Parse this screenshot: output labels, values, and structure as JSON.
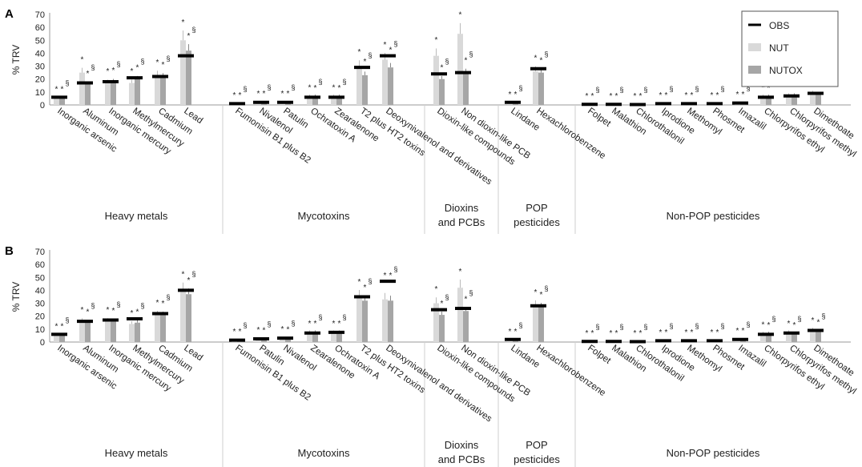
{
  "colors": {
    "obs": "#000000",
    "nut": "#d9d9d9",
    "nutox": "#a6a6a6",
    "axis": "#999999",
    "sep": "#cfcfcf",
    "text": "#222222"
  },
  "legend": {
    "items": [
      "OBS",
      "NUT",
      "NUTOX"
    ],
    "placement": "top-right"
  },
  "chart_data": [
    {
      "type": "bar",
      "panel_label": "A",
      "ylabel": "% TRV",
      "ylim": [
        0,
        70
      ],
      "yticks": [
        "0",
        "10",
        "20",
        "30",
        "40",
        "50",
        "60",
        "70"
      ],
      "categories": [
        "Inorganic arsenic",
        "Aluminum",
        "Inorganic mercury",
        "Methylmercury",
        "Cadmium",
        "Lead",
        "Fumonisin B1 plus B2",
        "Nivalenol",
        "Patulin",
        "Ochratoxin A",
        "Zearalenone",
        "T2 plus HT2 toxins",
        "Deoxynivalenol and derivatives",
        "Dioxin-like compounds",
        "Non dioxin-like PCB",
        "Lindane",
        "Hexachlorobenzene",
        "Folpet",
        "Malathion",
        "Chlorothalonil",
        "Iprodione",
        "Methomyl",
        "Phosmet",
        "Imazalil",
        "Chlorpyrifos ethyl",
        "Chlorpyrifos methyl",
        "Dimethoate"
      ],
      "groups": [
        {
          "label": "Heavy metals",
          "count": 6
        },
        {
          "label": "Mycotoxins",
          "count": 7
        },
        {
          "label": "Dioxins and PCBs",
          "count": 2
        },
        {
          "label": "POP pesticides",
          "count": 2
        },
        {
          "label": "Non-POP pesticides",
          "count": 10
        }
      ],
      "series": [
        {
          "name": "OBS",
          "values": [
            6,
            17,
            18,
            21,
            22,
            38,
            1,
            2,
            2,
            6,
            6,
            29,
            38,
            24,
            25,
            2,
            28,
            0.5,
            0.5,
            0.3,
            1,
            1,
            1,
            1.5,
            6,
            7,
            9
          ]
        },
        {
          "name": "NUT",
          "values": [
            5,
            25,
            17,
            17,
            23,
            50,
            1,
            2,
            2,
            6,
            6,
            30,
            35,
            38,
            55,
            1.5,
            26,
            0.5,
            0.5,
            0.3,
            1,
            1,
            1,
            1.5,
            6,
            7,
            9
          ]
        },
        {
          "name": "NUTOX",
          "values": [
            5,
            16,
            18,
            20,
            22,
            42,
            1,
            2,
            2,
            6,
            6,
            23,
            29,
            20,
            25,
            1.5,
            25,
            0.5,
            0.5,
            0.3,
            1,
            1,
            1,
            1.5,
            6,
            7,
            8
          ]
        }
      ]
    },
    {
      "type": "bar",
      "panel_label": "B",
      "ylabel": "% TRV",
      "ylim": [
        0,
        70
      ],
      "yticks": [
        "0",
        "10",
        "20",
        "30",
        "40",
        "50",
        "60",
        "70"
      ],
      "categories": [
        "Inorganic arsenic",
        "Aluminum",
        "Inorganic mercury",
        "Methylmercury",
        "Cadmium",
        "Lead",
        "Fumonisin B1 plus B2",
        "Patulin",
        "Nivalenol",
        "Zearalenone",
        "Ochratoxin A",
        "T2 plus HT2 toxins",
        "Deoxynivalenol and derivatives",
        "Dioxin-like compounds",
        "Non dioxin-like PCB",
        "Lindane",
        "Hexachlorobenzene",
        "Folpet",
        "Malathion",
        "Chlorothalonil",
        "Iprodione",
        "Methomyl",
        "Phosmet",
        "Imazalil",
        "Chlorpyrifos ethyl",
        "Chlorpyrifos methyl",
        "Dimethoate"
      ],
      "groups": [
        {
          "label": "Heavy metals",
          "count": 6
        },
        {
          "label": "Mycotoxins",
          "count": 7
        },
        {
          "label": "Dioxins and PCBs",
          "count": 2
        },
        {
          "label": "POP pesticides",
          "count": 2
        },
        {
          "label": "Non-POP pesticides",
          "count": 10
        }
      ],
      "series": [
        {
          "name": "OBS",
          "values": [
            6,
            16,
            17,
            18,
            22,
            40,
            1.5,
            2.5,
            3,
            7,
            7.5,
            35,
            47,
            25,
            26,
            2,
            28,
            0.5,
            0.5,
            0.3,
            1,
            1,
            1,
            2,
            6,
            7,
            9
          ]
        },
        {
          "name": "NUT",
          "values": [
            5,
            16,
            16,
            14,
            21,
            40,
            1.5,
            2.5,
            3,
            7,
            7,
            35,
            33,
            30,
            42,
            1.5,
            28,
            0.5,
            0.5,
            0.3,
            1,
            1,
            1,
            2,
            6,
            7,
            9
          ]
        },
        {
          "name": "NUTOX",
          "values": [
            5,
            15,
            16,
            15,
            21,
            37,
            1.5,
            2.5,
            3,
            7,
            7,
            32,
            32,
            21,
            24,
            1.5,
            27,
            0.5,
            0.5,
            0.3,
            1,
            1,
            1,
            2,
            6,
            6,
            8
          ]
        }
      ]
    }
  ]
}
